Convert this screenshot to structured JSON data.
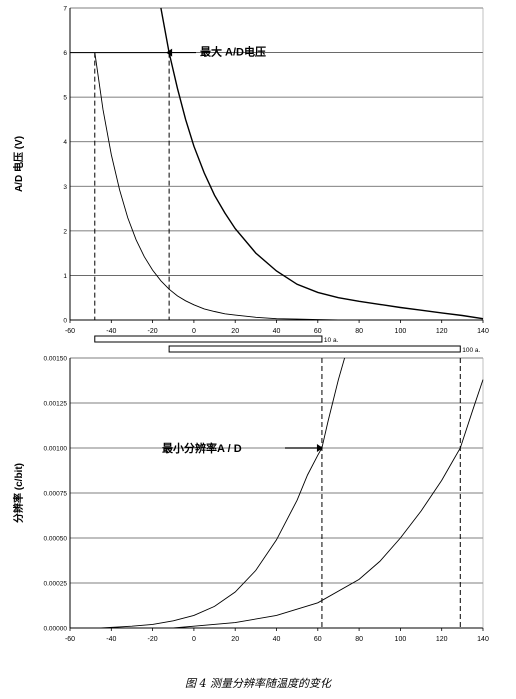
{
  "caption": "图 4 测量分辨率随温度的变化",
  "chart_data": [
    {
      "type": "line",
      "title": "",
      "ylabel": "A/D 电压 (V)",
      "xlabel": "",
      "xlim": [
        -60,
        140
      ],
      "ylim": [
        0,
        7
      ],
      "grid": "horizontal",
      "x_ticks": [
        "-60",
        "-40",
        "-20",
        "0",
        "20",
        "40",
        "60",
        "80",
        "100",
        "120",
        "140"
      ],
      "y_ticks": [
        "0",
        "1",
        "2",
        "3",
        "4",
        "5",
        "6",
        "7"
      ],
      "annotation": "最大 A/D电压",
      "max_voltage": 6,
      "markers_x": [
        -48,
        -12
      ],
      "series": [
        {
          "x": [
            -48,
            -44,
            -40,
            -36,
            -32,
            -28,
            -24,
            -20,
            -16,
            -12,
            -8,
            -4,
            0,
            5,
            10,
            15,
            20,
            30,
            40,
            50,
            60,
            70,
            80,
            90,
            100,
            110,
            120,
            130,
            140
          ],
          "y": [
            6,
            4.72,
            3.71,
            2.92,
            2.29,
            1.8,
            1.42,
            1.12,
            0.88,
            0.69,
            0.54,
            0.43,
            0.34,
            0.25,
            0.19,
            0.14,
            0.11,
            0.06,
            0.03,
            0.02,
            0.01,
            0,
            0,
            0,
            0,
            0,
            0,
            0,
            0
          ]
        },
        {
          "x": [
            -16,
            -12,
            -8,
            -4,
            0,
            5,
            10,
            15,
            20,
            30,
            40,
            50,
            60,
            70,
            80,
            90,
            100,
            110,
            120,
            130,
            140
          ],
          "y": [
            7,
            6,
            5.2,
            4.5,
            3.9,
            3.3,
            2.8,
            2.4,
            2.05,
            1.5,
            1.1,
            0.8,
            0.62,
            0.5,
            0.42,
            0.35,
            0.28,
            0.22,
            0.16,
            0.1,
            0.03
          ]
        }
      ]
    },
    {
      "type": "line",
      "title": "",
      "ylabel": "分辨率 (c/bit)",
      "xlabel": "",
      "xlim": [
        -60,
        140
      ],
      "ylim": [
        0,
        0.0015
      ],
      "grid": "horizontal",
      "x_ticks": [
        "-60",
        "-40",
        "-20",
        "0",
        "20",
        "40",
        "60",
        "80",
        "100",
        "120",
        "140"
      ],
      "y_ticks": [
        "0.00000",
        "0.00025",
        "0.00050",
        "0.00075",
        "0.00100",
        "0.00125",
        "0.00150"
      ],
      "annotation": "最小分辨率A / D",
      "min_resolution": 0.001,
      "markers_x": [
        62,
        129
      ],
      "series": [
        {
          "x": [
            -45,
            -30,
            -20,
            -10,
            0,
            10,
            20,
            30,
            40,
            50,
            55,
            60,
            62,
            65,
            70,
            73
          ],
          "y": [
            0,
            1e-05,
            2e-05,
            4e-05,
            7e-05,
            0.00012,
            0.0002,
            0.00032,
            0.00049,
            0.00071,
            0.00085,
            0.00096,
            0.001,
            0.00115,
            0.00138,
            0.0015
          ]
        },
        {
          "x": [
            -10,
            0,
            20,
            40,
            60,
            80,
            90,
            100,
            110,
            120,
            125,
            129,
            135,
            140
          ],
          "y": [
            0,
            1e-05,
            3e-05,
            7e-05,
            0.00014,
            0.00027,
            0.00037,
            0.0005,
            0.00065,
            0.00082,
            0.00092,
            0.001,
            0.00121,
            0.00138
          ]
        }
      ]
    }
  ],
  "range_bars": [
    {
      "label": "10 a.",
      "start": -48,
      "end": 62
    },
    {
      "label": "100 a.",
      "start": -12,
      "end": 129
    }
  ]
}
